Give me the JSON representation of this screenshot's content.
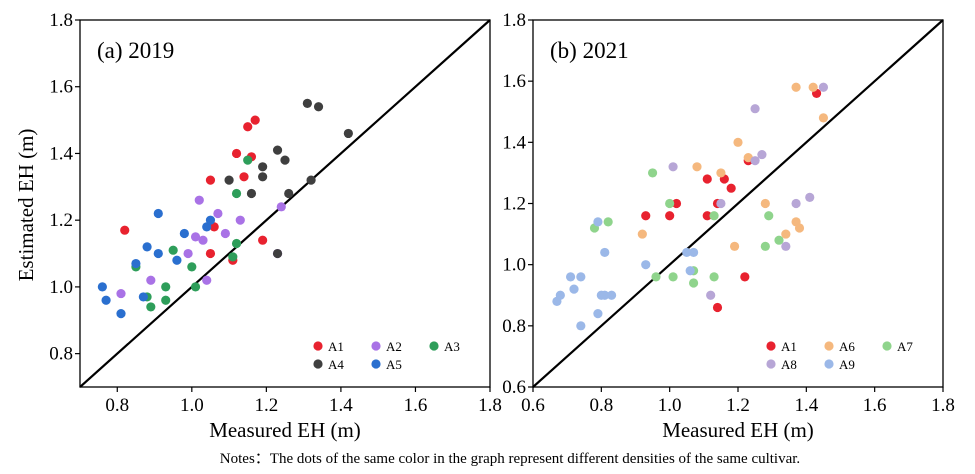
{
  "chart_data": [
    {
      "type": "scatter",
      "title": "(a) 2019",
      "xlabel": "Measured EH (m)",
      "ylabel": "Estimated EH (m)",
      "xlim": [
        0.7,
        1.8
      ],
      "ylim": [
        0.7,
        1.8
      ],
      "xticks": [
        "0.8",
        "1.0",
        "1.2",
        "1.4",
        "1.6",
        "1.8"
      ],
      "yticks": [
        "0.8",
        "1.0",
        "1.2",
        "1.4",
        "1.6",
        "1.8"
      ],
      "reference_line": "1:1",
      "legend_position": "bottom-right",
      "series": [
        {
          "name": "A1",
          "color": "#e8222f",
          "points": [
            [
              0.82,
              1.17
            ],
            [
              1.05,
              1.32
            ],
            [
              1.05,
              1.1
            ],
            [
              1.06,
              1.18
            ],
            [
              1.11,
              1.08
            ],
            [
              1.12,
              1.4
            ],
            [
              1.14,
              1.33
            ],
            [
              1.15,
              1.48
            ],
            [
              1.16,
              1.39
            ],
            [
              1.17,
              1.5
            ],
            [
              1.19,
              1.14
            ]
          ]
        },
        {
          "name": "A2",
          "color": "#a972e6",
          "points": [
            [
              0.81,
              0.98
            ],
            [
              0.89,
              1.02
            ],
            [
              0.99,
              1.1
            ],
            [
              1.01,
              1.15
            ],
            [
              1.02,
              1.26
            ],
            [
              1.03,
              1.14
            ],
            [
              1.04,
              1.02
            ],
            [
              1.07,
              1.22
            ],
            [
              1.09,
              1.16
            ],
            [
              1.13,
              1.2
            ],
            [
              1.23,
              1.1
            ],
            [
              1.24,
              1.24
            ]
          ]
        },
        {
          "name": "A3",
          "color": "#2e9e5a",
          "points": [
            [
              0.85,
              1.06
            ],
            [
              0.88,
              0.97
            ],
            [
              0.89,
              0.94
            ],
            [
              0.93,
              0.96
            ],
            [
              0.93,
              1.0
            ],
            [
              0.95,
              1.11
            ],
            [
              1.0,
              1.06
            ],
            [
              1.01,
              1.0
            ],
            [
              1.11,
              1.09
            ],
            [
              1.12,
              1.13
            ],
            [
              1.12,
              1.28
            ],
            [
              1.15,
              1.38
            ]
          ]
        },
        {
          "name": "A4",
          "color": "#3f3f3f",
          "points": [
            [
              1.1,
              1.32
            ],
            [
              1.16,
              1.28
            ],
            [
              1.19,
              1.33
            ],
            [
              1.19,
              1.36
            ],
            [
              1.23,
              1.1
            ],
            [
              1.23,
              1.41
            ],
            [
              1.25,
              1.38
            ],
            [
              1.26,
              1.28
            ],
            [
              1.31,
              1.55
            ],
            [
              1.32,
              1.32
            ],
            [
              1.34,
              1.54
            ],
            [
              1.42,
              1.46
            ]
          ]
        },
        {
          "name": "A5",
          "color": "#2a6fcf",
          "points": [
            [
              0.76,
              1.0
            ],
            [
              0.77,
              0.96
            ],
            [
              0.81,
              0.92
            ],
            [
              0.85,
              1.07
            ],
            [
              0.87,
              0.97
            ],
            [
              0.88,
              1.12
            ],
            [
              0.91,
              1.22
            ],
            [
              0.91,
              1.1
            ],
            [
              0.96,
              1.08
            ],
            [
              0.98,
              1.16
            ],
            [
              1.04,
              1.18
            ],
            [
              1.05,
              1.2
            ]
          ]
        }
      ]
    },
    {
      "type": "scatter",
      "title": "(b) 2021",
      "xlabel": "Measured EH (m)",
      "ylabel": "",
      "xlim": [
        0.6,
        1.8
      ],
      "ylim": [
        0.6,
        1.8
      ],
      "xticks": [
        "0.6",
        "0.8",
        "1.0",
        "1.2",
        "1.4",
        "1.6",
        "1.8"
      ],
      "yticks": [
        "0.6",
        "0.8",
        "1.0",
        "1.2",
        "1.4",
        "1.6",
        "1.8"
      ],
      "reference_line": "1:1",
      "legend_position": "bottom-right",
      "series": [
        {
          "name": "A1",
          "color": "#e8222f",
          "points": [
            [
              0.93,
              1.16
            ],
            [
              1.0,
              1.16
            ],
            [
              1.02,
              1.2
            ],
            [
              1.11,
              1.16
            ],
            [
              1.11,
              1.28
            ],
            [
              1.14,
              1.2
            ],
            [
              1.14,
              0.86
            ],
            [
              1.16,
              1.28
            ],
            [
              1.18,
              1.25
            ],
            [
              1.22,
              0.96
            ],
            [
              1.23,
              1.34
            ],
            [
              1.43,
              1.56
            ]
          ]
        },
        {
          "name": "A6",
          "color": "#f5b87e",
          "points": [
            [
              0.92,
              1.1
            ],
            [
              1.08,
              1.32
            ],
            [
              1.15,
              1.3
            ],
            [
              1.19,
              1.06
            ],
            [
              1.2,
              1.4
            ],
            [
              1.23,
              1.35
            ],
            [
              1.28,
              1.2
            ],
            [
              1.34,
              1.1
            ],
            [
              1.37,
              1.14
            ],
            [
              1.37,
              1.58
            ],
            [
              1.38,
              1.12
            ],
            [
              1.42,
              1.58
            ],
            [
              1.45,
              1.48
            ]
          ]
        },
        {
          "name": "A7",
          "color": "#8fd48c",
          "points": [
            [
              0.78,
              1.12
            ],
            [
              0.82,
              1.14
            ],
            [
              0.95,
              1.3
            ],
            [
              0.96,
              0.96
            ],
            [
              1.0,
              1.2
            ],
            [
              1.01,
              0.96
            ],
            [
              1.07,
              0.98
            ],
            [
              1.07,
              0.94
            ],
            [
              1.13,
              1.16
            ],
            [
              1.13,
              0.96
            ],
            [
              1.28,
              1.06
            ],
            [
              1.29,
              1.16
            ],
            [
              1.32,
              1.08
            ]
          ]
        },
        {
          "name": "A8",
          "color": "#b7a6d6",
          "points": [
            [
              1.01,
              1.32
            ],
            [
              1.12,
              0.9
            ],
            [
              1.15,
              1.2
            ],
            [
              1.25,
              1.34
            ],
            [
              1.25,
              1.51
            ],
            [
              1.27,
              1.36
            ],
            [
              1.34,
              1.06
            ],
            [
              1.37,
              1.2
            ],
            [
              1.41,
              1.22
            ],
            [
              1.45,
              1.58
            ]
          ]
        },
        {
          "name": "A9",
          "color": "#9bb8e8",
          "points": [
            [
              0.67,
              0.88
            ],
            [
              0.68,
              0.9
            ],
            [
              0.71,
              0.96
            ],
            [
              0.72,
              0.92
            ],
            [
              0.74,
              0.96
            ],
            [
              0.74,
              0.8
            ],
            [
              0.79,
              0.84
            ],
            [
              0.79,
              1.14
            ],
            [
              0.8,
              0.9
            ],
            [
              0.81,
              0.9
            ],
            [
              0.81,
              1.04
            ],
            [
              0.83,
              0.9
            ],
            [
              0.93,
              1.0
            ],
            [
              1.05,
              1.04
            ],
            [
              1.06,
              0.98
            ],
            [
              1.07,
              1.04
            ]
          ]
        }
      ]
    }
  ],
  "note": "Notes：The dots of the same color in the graph represent different densities of the same cultivar."
}
